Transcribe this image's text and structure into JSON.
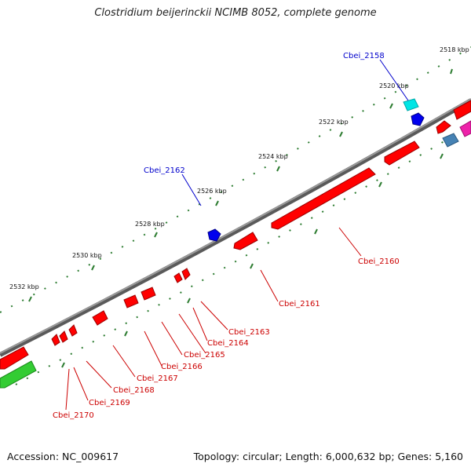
{
  "title": "Clostridium beijerinckii NCIMB 8052, complete genome",
  "accession": "Accession: NC_009617",
  "topology": "Topology: circular; Length: 6,000,632 bp; Genes: 5,160",
  "kbp_labels": [
    "2518 kbp",
    "2520 kbp",
    "2522 kbp",
    "2524 kbp",
    "2526 kbp",
    "2528 kbp",
    "2530 kbp",
    "2532 kbp"
  ],
  "gene_labels_forward": [
    "Cbei_2158",
    "Cbei_2162"
  ],
  "gene_labels_reverse": [
    "Cbei_2160",
    "Cbei_2161",
    "Cbei_2163",
    "Cbei_2164",
    "Cbei_2165",
    "Cbei_2166",
    "Cbei_2167",
    "Cbei_2168",
    "Cbei_2169",
    "Cbei_2170"
  ],
  "colors": {
    "backbone": "#808080",
    "tick": "#2e7d32",
    "reverse_gene": "#ff0000",
    "forward_gene": "#0000ee",
    "cyan_gene": "#00e5e5",
    "steel_gene": "#4682b4",
    "magenta_gene": "#ee22aa",
    "green_gene": "#33cc33",
    "forward_label": "#0000cc",
    "reverse_label": "#cc0000"
  }
}
